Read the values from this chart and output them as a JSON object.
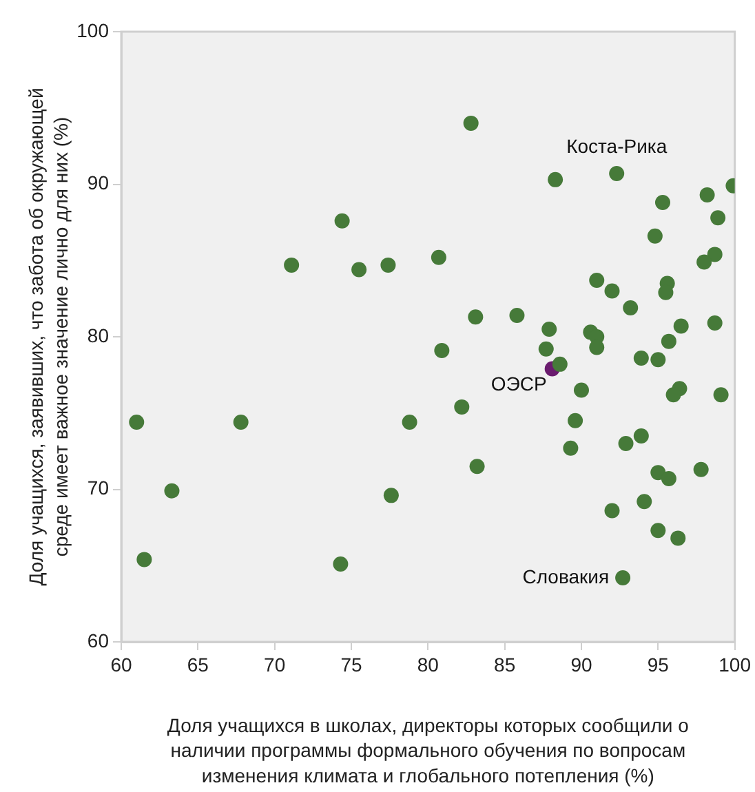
{
  "chart_data": {
    "type": "scatter",
    "xlabel": "Доля учащихся в школах, директоры которых сообщили о\nналичии программы формального обучения по вопросам\nизменения климата и глобального потепления (%)",
    "ylabel": "Доля учащихся, заявивших, что забота об окружающей\nсреде имеет важное значение лично для них (%)",
    "xlim": [
      60,
      100
    ],
    "xticks": [
      60,
      65,
      70,
      75,
      80,
      85,
      90,
      95,
      100
    ],
    "ylim": [
      60,
      100
    ],
    "yticks": [
      60,
      70,
      80,
      90,
      100
    ],
    "grid": false,
    "legend": false,
    "marker": "circle",
    "series": [
      {
        "color": "#467a39",
        "x": [
          61.0,
          61.5,
          63.3,
          67.8,
          71.1,
          74.4,
          74.3,
          75.5,
          77.4,
          78.8,
          77.6,
          82.8,
          88.3,
          92.3,
          99.9,
          98.2,
          95.3,
          98.9,
          94.8,
          80.7,
          98.7,
          98.0,
          91.0,
          95.6,
          95.5,
          92.0,
          93.2,
          83.1,
          85.8,
          98.7,
          96.5,
          80.9,
          87.9,
          90.6,
          91.0,
          91.0,
          87.7,
          95.7,
          93.9,
          95.0,
          88.6,
          90.0,
          96.4,
          96.0,
          99.1,
          82.2,
          89.6,
          93.9,
          92.9,
          89.3,
          83.2,
          95.0,
          95.7,
          97.8,
          94.1,
          92.0,
          95.0,
          96.3,
          92.7
        ],
        "values": [
          74.4,
          65.4,
          69.9,
          74.4,
          84.7,
          87.6,
          65.1,
          84.4,
          84.7,
          74.4,
          69.6,
          94.0,
          90.3,
          90.7,
          89.9,
          89.3,
          88.8,
          87.8,
          86.6,
          85.2,
          85.4,
          84.9,
          83.7,
          83.5,
          82.9,
          83.0,
          81.9,
          81.3,
          81.4,
          80.9,
          80.7,
          79.1,
          80.5,
          80.3,
          80.0,
          79.3,
          79.2,
          79.7,
          78.6,
          78.5,
          78.2,
          76.5,
          76.6,
          76.2,
          76.2,
          75.4,
          74.5,
          73.5,
          73.0,
          72.7,
          71.5,
          71.1,
          70.7,
          71.3,
          69.2,
          68.6,
          67.3,
          66.8,
          64.2
        ]
      },
      {
        "color": "#6a1b6e",
        "x": [
          88.1
        ],
        "values": [
          77.9
        ]
      }
    ],
    "annotations": [
      {
        "text": "Коста-Рика",
        "x": 92.3,
        "y": 90.7
      },
      {
        "text": "ОЭСР",
        "x": 88.1,
        "y": 77.9
      },
      {
        "text": "Словакия",
        "x": 92.7,
        "y": 64.2
      }
    ]
  }
}
